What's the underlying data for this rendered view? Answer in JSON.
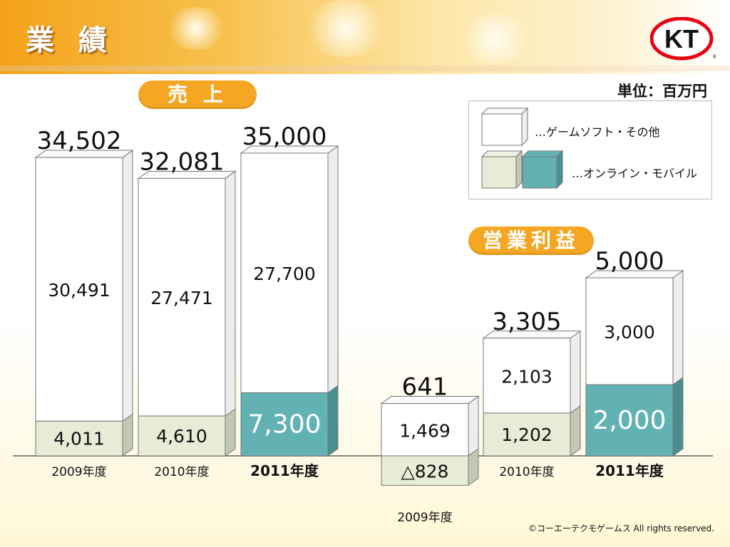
{
  "header": {
    "title": "業 績",
    "logo_text": "KT",
    "logo_mark": "®"
  },
  "unit_label": "単位：百万円",
  "sections": {
    "sales_label": "売 上",
    "profit_label": "営業利益"
  },
  "legend": {
    "items": [
      {
        "label": "…ゲームソフト・その他",
        "colors": [
          "#ffffff"
        ]
      },
      {
        "label": "…オンライン・モバイル",
        "colors": [
          "#e6ecd6",
          "#62b2b4"
        ]
      }
    ]
  },
  "colors": {
    "game_front": "#ffffff",
    "game_side": "#eeeeee",
    "game_top": "#fafafa",
    "online_front": "#e6ecd6",
    "online_side": "#c3c8b3",
    "online_top": "#eef2e4",
    "online_plan_front": "#62b2b4",
    "online_plan_side": "#4a8f90",
    "outline": "#777777",
    "baseline": "#888888",
    "accent": "#f5a623"
  },
  "chart_data": [
    {
      "type": "bar",
      "title": "売 上",
      "categories": [
        "2009年度",
        "2010年度",
        "2011年度"
      ],
      "series": [
        {
          "name": "オンライン・モバイル",
          "values": [
            4011,
            4610,
            7300
          ]
        },
        {
          "name": "ゲームソフト・その他",
          "values": [
            30491,
            27471,
            27700
          ]
        }
      ],
      "totals": [
        34502,
        32081,
        35000
      ],
      "plan_index": 2,
      "labels": {
        "totals": [
          "34,502",
          "32,081",
          "35,000"
        ],
        "online": [
          "4,011",
          "4,610",
          "7,300"
        ],
        "game": [
          "30,491",
          "27,471",
          "27,700"
        ]
      },
      "ylim": [
        0,
        36000
      ]
    },
    {
      "type": "bar",
      "title": "営業利益",
      "categories": [
        "2009年度",
        "2010年度",
        "2011年度"
      ],
      "series": [
        {
          "name": "オンライン・モバイル",
          "values": [
            -828,
            1202,
            2000
          ]
        },
        {
          "name": "ゲームソフト・その他",
          "values": [
            1469,
            2103,
            3000
          ]
        }
      ],
      "totals": [
        641,
        3305,
        5000
      ],
      "plan_index": 2,
      "labels": {
        "totals": [
          "641",
          "3,305",
          "5,000"
        ],
        "online": [
          "△828",
          "1,202",
          "2,000"
        ],
        "game": [
          "1,469",
          "2,103",
          "3,000"
        ]
      },
      "ylim": [
        -900,
        5500
      ]
    }
  ],
  "copyright": "©コーエーテクモゲームス All rights reserved."
}
